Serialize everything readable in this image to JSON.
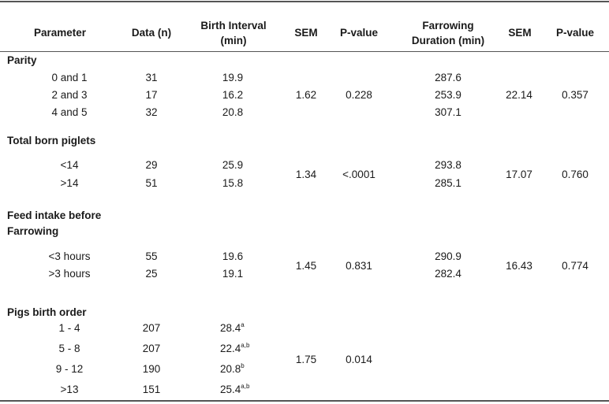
{
  "header": {
    "parameter": "Parameter",
    "data_n": "Data (n)",
    "birth_interval_l1": "Birth Interval",
    "birth_interval_l2": "(min)",
    "sem1": "SEM",
    "pvalue1": "P-value",
    "farrowing_l1": "Farrowing",
    "farrowing_l2": "Duration (min)",
    "sem2": "SEM",
    "pvalue2": "P-value"
  },
  "groups": {
    "parity": {
      "title": "Parity",
      "rows": [
        {
          "label": "0 and 1",
          "n": "31",
          "bi": "19.9",
          "fd": "287.6"
        },
        {
          "label": "2 and 3",
          "n": "17",
          "bi": "16.2",
          "fd": "253.9"
        },
        {
          "label": "4 and 5",
          "n": "32",
          "bi": "20.8",
          "fd": "307.1"
        }
      ],
      "sem1": "1.62",
      "p1": "0.228",
      "sem2": "22.14",
      "p2": "0.357"
    },
    "total_born": {
      "title": "Total born piglets",
      "rows": [
        {
          "label": "<14",
          "n": "29",
          "bi": "25.9",
          "fd": "293.8"
        },
        {
          "label": ">14",
          "n": "51",
          "bi": "15.8",
          "fd": "285.1"
        }
      ],
      "sem1": "1.34",
      "p1": "<.0001",
      "sem2": "17.07",
      "p2": "0.760"
    },
    "feed_intake": {
      "title_l1": "Feed intake before",
      "title_l2": "Farrowing",
      "rows": [
        {
          "label": "<3 hours",
          "n": "55",
          "bi": "19.6",
          "fd": "290.9"
        },
        {
          "label": ">3 hours",
          "n": "25",
          "bi": "19.1",
          "fd": "282.4"
        }
      ],
      "sem1": "1.45",
      "p1": "0.831",
      "sem2": "16.43",
      "p2": "0.774"
    },
    "birth_order": {
      "title": "Pigs birth order",
      "rows": [
        {
          "label": "1 - 4",
          "n": "207",
          "bi": "28.4",
          "sup": "a"
        },
        {
          "label": "5 - 8",
          "n": "207",
          "bi": "22.4",
          "sup": "a,b"
        },
        {
          "label": "9 - 12",
          "n": "190",
          "bi": "20.8",
          "sup": "b"
        },
        {
          "label": ">13",
          "n": "151",
          "bi": "25.4",
          "sup": "a,b"
        }
      ],
      "sem1": "1.75",
      "p1": "0.014"
    }
  }
}
